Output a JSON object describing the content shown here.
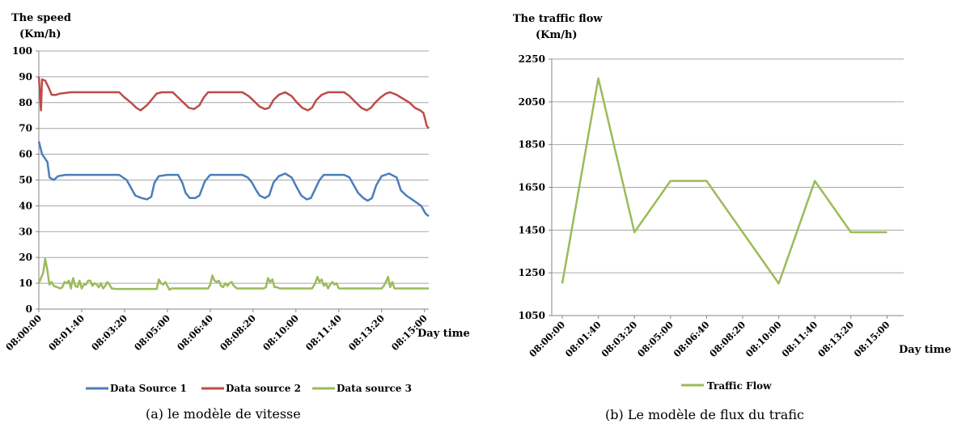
{
  "chart_data": [
    {
      "type": "line",
      "ylabel_line1": "The speed",
      "ylabel_line2": "(Km/h)",
      "xlabel": "Day time",
      "ylim": [
        0,
        100
      ],
      "yticks": [
        0,
        10,
        20,
        30,
        40,
        50,
        60,
        70,
        80,
        90,
        100
      ],
      "xticks": [
        "08:00:00",
        "08:01:40",
        "08:03:20",
        "08:05:00",
        "08:06:40",
        "08:08:20",
        "08:10:00",
        "08:11:40",
        "08:13:20",
        "08:15:00"
      ],
      "x_step_seconds": 5,
      "grid": true,
      "legend_position": "bottom",
      "caption": "(a) le modèle de vitesse",
      "series": [
        {
          "name": "Data Source 1",
          "color": "#4a7ebb",
          "points": [
            [
              0,
              65
            ],
            [
              3,
              60
            ],
            [
              8,
              57
            ],
            [
              10,
              51
            ],
            [
              14,
              50
            ],
            [
              18,
              51.5
            ],
            [
              25,
              52
            ],
            [
              35,
              52
            ],
            [
              45,
              52
            ],
            [
              55,
              52
            ],
            [
              65,
              52
            ],
            [
              75,
              52
            ],
            [
              82,
              50
            ],
            [
              86,
              47
            ],
            [
              90,
              44
            ],
            [
              96,
              43
            ],
            [
              101,
              42.5
            ],
            [
              105,
              43.5
            ],
            [
              108,
              49
            ],
            [
              112,
              51.5
            ],
            [
              120,
              52
            ],
            [
              130,
              52
            ],
            [
              134,
              49
            ],
            [
              137,
              45
            ],
            [
              141,
              43
            ],
            [
              146,
              43
            ],
            [
              150,
              44
            ],
            [
              155,
              49.5
            ],
            [
              160,
              52
            ],
            [
              170,
              52
            ],
            [
              180,
              52
            ],
            [
              190,
              52
            ],
            [
              195,
              51
            ],
            [
              199,
              49
            ],
            [
              203,
              46
            ],
            [
              206,
              44
            ],
            [
              211,
              43
            ],
            [
              215,
              44
            ],
            [
              219,
              49
            ],
            [
              224,
              51.5
            ],
            [
              230,
              52.5
            ],
            [
              236,
              51
            ],
            [
              241,
              47
            ],
            [
              245,
              44
            ],
            [
              250,
              42.5
            ],
            [
              254,
              43
            ],
            [
              258,
              46.5
            ],
            [
              262,
              50
            ],
            [
              266,
              52
            ],
            [
              272,
              52
            ],
            [
              285,
              52
            ],
            [
              290,
              51
            ],
            [
              294,
              48
            ],
            [
              298,
              45
            ],
            [
              303,
              43
            ],
            [
              307,
              42
            ],
            [
              311,
              43
            ],
            [
              315,
              48
            ],
            [
              320,
              51.5
            ],
            [
              327,
              52.5
            ],
            [
              334,
              51
            ],
            [
              338,
              46
            ],
            [
              343,
              44
            ],
            [
              350,
              42
            ],
            [
              357,
              40
            ],
            [
              361,
              37
            ],
            [
              364,
              36
            ]
          ]
        },
        {
          "name": "Data source 2",
          "color": "#be4b48",
          "points": [
            [
              0,
              90
            ],
            [
              1,
              84
            ],
            [
              2,
              77
            ],
            [
              3,
              89
            ],
            [
              6,
              88.5
            ],
            [
              9,
              86
            ],
            [
              12,
              83
            ],
            [
              16,
              83
            ],
            [
              20,
              83.5
            ],
            [
              30,
              84
            ],
            [
              45,
              84
            ],
            [
              60,
              84
            ],
            [
              75,
              84
            ],
            [
              80,
              82
            ],
            [
              86,
              80
            ],
            [
              91,
              78
            ],
            [
              95,
              77
            ],
            [
              101,
              79
            ],
            [
              106,
              81.5
            ],
            [
              110,
              83.5
            ],
            [
              115,
              84
            ],
            [
              125,
              84
            ],
            [
              130,
              82
            ],
            [
              135,
              80
            ],
            [
              140,
              78
            ],
            [
              145,
              77.5
            ],
            [
              150,
              79
            ],
            [
              154,
              82
            ],
            [
              158,
              84
            ],
            [
              170,
              84
            ],
            [
              180,
              84
            ],
            [
              190,
              84
            ],
            [
              196,
              82.5
            ],
            [
              201,
              80.5
            ],
            [
              206,
              78.5
            ],
            [
              211,
              77.5
            ],
            [
              215,
              78
            ],
            [
              219,
              81
            ],
            [
              224,
              83
            ],
            [
              230,
              84
            ],
            [
              236,
              82.5
            ],
            [
              241,
              80
            ],
            [
              246,
              78
            ],
            [
              251,
              77
            ],
            [
              255,
              78
            ],
            [
              259,
              81
            ],
            [
              264,
              83
            ],
            [
              270,
              84
            ],
            [
              285,
              84
            ],
            [
              290,
              82.5
            ],
            [
              296,
              80
            ],
            [
              301,
              78
            ],
            [
              306,
              77
            ],
            [
              310,
              78
            ],
            [
              314,
              80
            ],
            [
              319,
              82
            ],
            [
              324,
              83.5
            ],
            [
              328,
              84
            ],
            [
              334,
              83
            ],
            [
              340,
              81.5
            ],
            [
              346,
              80
            ],
            [
              351,
              78
            ],
            [
              356,
              77
            ],
            [
              359,
              76
            ],
            [
              361,
              73
            ],
            [
              362,
              71
            ],
            [
              364,
              70
            ]
          ]
        },
        {
          "name": "Data source 3",
          "color": "#9bbb59",
          "points": [
            [
              0,
              10
            ],
            [
              2,
              12
            ],
            [
              4,
              14
            ],
            [
              6,
              19.5
            ],
            [
              8,
              15
            ],
            [
              9,
              12
            ],
            [
              10,
              9.5
            ],
            [
              12,
              10.5
            ],
            [
              14,
              9
            ],
            [
              20,
              8
            ],
            [
              22,
              8.5
            ],
            [
              24,
              10.5
            ],
            [
              26,
              10
            ],
            [
              28,
              11
            ],
            [
              30,
              8
            ],
            [
              31,
              10.5
            ],
            [
              32,
              12
            ],
            [
              34,
              9
            ],
            [
              36,
              8.5
            ],
            [
              38,
              11
            ],
            [
              40,
              8
            ],
            [
              42,
              9.5
            ],
            [
              44,
              9.5
            ],
            [
              46,
              11
            ],
            [
              48,
              11
            ],
            [
              50,
              9
            ],
            [
              52,
              10
            ],
            [
              54,
              9.5
            ],
            [
              56,
              8.5
            ],
            [
              58,
              10
            ],
            [
              60,
              8
            ],
            [
              62,
              9
            ],
            [
              64,
              10.5
            ],
            [
              66,
              9.5
            ],
            [
              68,
              8
            ],
            [
              72,
              7.8
            ],
            [
              80,
              7.8
            ],
            [
              95,
              7.8
            ],
            [
              110,
              7.8
            ],
            [
              112,
              11.5
            ],
            [
              114,
              10
            ],
            [
              116,
              9.5
            ],
            [
              118,
              10.5
            ],
            [
              120,
              9
            ],
            [
              122,
              7.5
            ],
            [
              124,
              8
            ],
            [
              130,
              8
            ],
            [
              145,
              8
            ],
            [
              158,
              8
            ],
            [
              160,
              9.5
            ],
            [
              162,
              13
            ],
            [
              164,
              11
            ],
            [
              166,
              10.5
            ],
            [
              168,
              11
            ],
            [
              170,
              9
            ],
            [
              172,
              8.5
            ],
            [
              174,
              10
            ],
            [
              176,
              9
            ],
            [
              178,
              10
            ],
            [
              180,
              10.5
            ],
            [
              182,
              9
            ],
            [
              185,
              8
            ],
            [
              195,
              8
            ],
            [
              210,
              8
            ],
            [
              212,
              8.5
            ],
            [
              214,
              12
            ],
            [
              216,
              10.5
            ],
            [
              218,
              11.5
            ],
            [
              220,
              8.5
            ],
            [
              222,
              8.5
            ],
            [
              225,
              8
            ],
            [
              240,
              8
            ],
            [
              255,
              8
            ],
            [
              258,
              10
            ],
            [
              260,
              12.5
            ],
            [
              262,
              10.5
            ],
            [
              264,
              11.5
            ],
            [
              266,
              9
            ],
            [
              268,
              10
            ],
            [
              270,
              8
            ],
            [
              272,
              9.5
            ],
            [
              274,
              10.5
            ],
            [
              276,
              9.5
            ],
            [
              278,
              10
            ],
            [
              280,
              8
            ],
            [
              290,
              8
            ],
            [
              310,
              8
            ],
            [
              320,
              8
            ],
            [
              322,
              9
            ],
            [
              324,
              10.5
            ],
            [
              326,
              12.5
            ],
            [
              328,
              8.5
            ],
            [
              330,
              10.5
            ],
            [
              332,
              8
            ],
            [
              340,
              8
            ],
            [
              350,
              8
            ],
            [
              364,
              8
            ]
          ]
        }
      ]
    },
    {
      "type": "line",
      "ylabel_line1": "The traffic flow",
      "ylabel_line2": "(Km/h)",
      "xlabel": "Day time",
      "ylim": [
        1050,
        2250
      ],
      "yticks": [
        1050,
        1250,
        1450,
        1650,
        1850,
        2050,
        2250
      ],
      "xticks": [
        "08:00:00",
        "08:01:40",
        "08:03:20",
        "08:05:00",
        "08:06:40",
        "08:08:20",
        "08:10:00",
        "08:11:40",
        "08:13:20",
        "08:15:00"
      ],
      "grid": true,
      "legend_position": "bottom",
      "caption": "(b) Le modèle de flux du trafic",
      "series": [
        {
          "name": "Traffic Flow",
          "color": "#9bbb59",
          "x": [
            0,
            1,
            2,
            3,
            4,
            5,
            6,
            7,
            8,
            9
          ],
          "values": [
            1200,
            2160,
            1440,
            1680,
            1680,
            1440,
            1200,
            1680,
            1440,
            1440
          ]
        }
      ]
    }
  ]
}
